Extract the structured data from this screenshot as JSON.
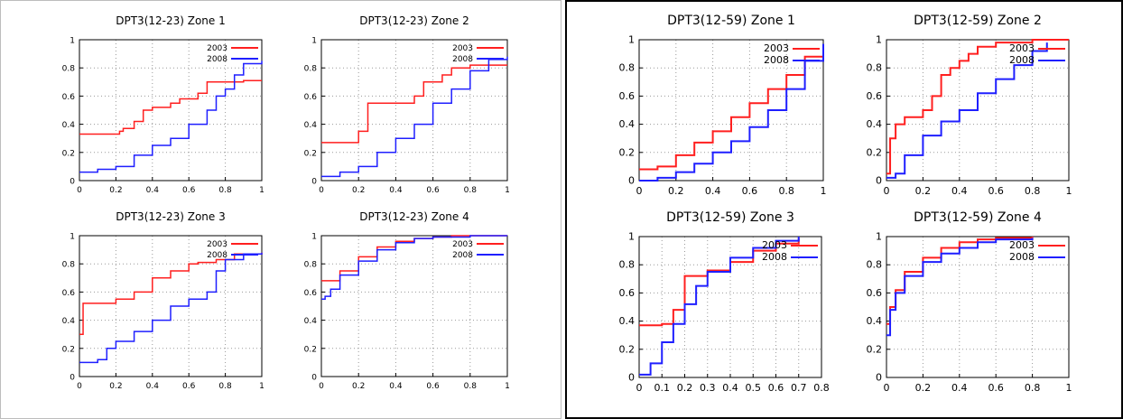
{
  "colors": {
    "s2003": "#ff1f1f",
    "s2008": "#1f1fff",
    "grid": "#9a9a9a"
  },
  "chart_data": [
    {
      "type": "line",
      "title": "DPT3(12-23) Zone 1",
      "xlim": [
        0,
        1
      ],
      "ylim": [
        0,
        1
      ],
      "xticks": [
        "0",
        "0.2",
        "0.4",
        "0.6",
        "0.8",
        "1"
      ],
      "yticks": [
        "0",
        "0.2",
        "0.4",
        "0.6",
        "0.8",
        "1"
      ],
      "legend": "top-right",
      "series": [
        {
          "name": "2003",
          "x": [
            0,
            0.22,
            0.24,
            0.3,
            0.35,
            0.4,
            0.5,
            0.55,
            0.65,
            0.7,
            0.9,
            1
          ],
          "y": [
            0.33,
            0.35,
            0.37,
            0.42,
            0.5,
            0.52,
            0.55,
            0.58,
            0.62,
            0.7,
            0.71,
            0.71
          ]
        },
        {
          "name": "2008",
          "x": [
            0,
            0.1,
            0.2,
            0.3,
            0.4,
            0.5,
            0.6,
            0.7,
            0.75,
            0.8,
            0.85,
            0.9,
            1
          ],
          "y": [
            0.06,
            0.08,
            0.1,
            0.18,
            0.25,
            0.3,
            0.4,
            0.5,
            0.6,
            0.65,
            0.75,
            0.83,
            0.85
          ]
        }
      ]
    },
    {
      "type": "line",
      "title": "DPT3(12-23) Zone 2",
      "xlim": [
        0,
        1
      ],
      "ylim": [
        0,
        1
      ],
      "xticks": [
        "0",
        "0.2",
        "0.4",
        "0.6",
        "0.8",
        "1"
      ],
      "yticks": [
        "0",
        "0.2",
        "0.4",
        "0.6",
        "0.8",
        "1"
      ],
      "legend": "top-right",
      "series": [
        {
          "name": "2003",
          "x": [
            0,
            0.2,
            0.25,
            0.5,
            0.55,
            0.65,
            0.7,
            0.8,
            0.9,
            1
          ],
          "y": [
            0.27,
            0.35,
            0.55,
            0.6,
            0.7,
            0.75,
            0.8,
            0.82,
            0.82,
            0.82
          ]
        },
        {
          "name": "2008",
          "x": [
            0,
            0.1,
            0.2,
            0.3,
            0.4,
            0.5,
            0.6,
            0.7,
            0.8,
            0.9,
            1
          ],
          "y": [
            0.03,
            0.06,
            0.1,
            0.2,
            0.3,
            0.4,
            0.55,
            0.65,
            0.78,
            0.86,
            0.88
          ]
        }
      ]
    },
    {
      "type": "line",
      "title": "DPT3(12-23) Zone 3",
      "xlim": [
        0,
        1
      ],
      "ylim": [
        0,
        1
      ],
      "xticks": [
        "0",
        "0.2",
        "0.4",
        "0.6",
        "0.8",
        "1"
      ],
      "yticks": [
        "0",
        "0.2",
        "0.4",
        "0.6",
        "0.8",
        "1"
      ],
      "legend": "top-right",
      "series": [
        {
          "name": "2003",
          "x": [
            0,
            0.02,
            0.2,
            0.3,
            0.4,
            0.5,
            0.6,
            0.65,
            0.75,
            0.85,
            1
          ],
          "y": [
            0.3,
            0.52,
            0.55,
            0.6,
            0.7,
            0.75,
            0.8,
            0.81,
            0.83,
            0.87,
            0.88
          ]
        },
        {
          "name": "2008",
          "x": [
            0,
            0.1,
            0.15,
            0.2,
            0.3,
            0.4,
            0.5,
            0.6,
            0.7,
            0.75,
            0.8,
            0.9,
            1
          ],
          "y": [
            0.1,
            0.12,
            0.2,
            0.25,
            0.32,
            0.4,
            0.5,
            0.55,
            0.6,
            0.75,
            0.83,
            0.87,
            0.88
          ]
        }
      ]
    },
    {
      "type": "line",
      "title": "DPT3(12-23) Zone 4",
      "xlim": [
        0,
        1
      ],
      "ylim": [
        0,
        1
      ],
      "xticks": [
        "0",
        "0.2",
        "0.4",
        "0.6",
        "0.8",
        "1"
      ],
      "yticks": [
        "0",
        "0.2",
        "0.4",
        "0.6",
        "0.8",
        "1"
      ],
      "legend": "top-right",
      "series": [
        {
          "name": "2003",
          "x": [
            0,
            0.1,
            0.2,
            0.3,
            0.4,
            0.5,
            0.6,
            0.7,
            0.8,
            1
          ],
          "y": [
            0.68,
            0.75,
            0.85,
            0.92,
            0.96,
            0.98,
            0.99,
            1,
            1,
            1
          ]
        },
        {
          "name": "2008",
          "x": [
            0,
            0.02,
            0.05,
            0.1,
            0.2,
            0.3,
            0.4,
            0.5,
            0.6,
            0.8,
            1
          ],
          "y": [
            0.55,
            0.57,
            0.62,
            0.72,
            0.82,
            0.9,
            0.95,
            0.98,
            0.99,
            1,
            1
          ]
        }
      ]
    },
    {
      "type": "line",
      "title": "DPT3(12-59) Zone 1",
      "xlim": [
        0,
        1
      ],
      "ylim": [
        0,
        1
      ],
      "xticks": [
        "0",
        "0.2",
        "0.4",
        "0.6",
        "0.8",
        "1"
      ],
      "yticks": [
        "0",
        "0.2",
        "0.4",
        "0.6",
        "0.8",
        "1"
      ],
      "legend": "top-right",
      "series": [
        {
          "name": "2003",
          "x": [
            0,
            0.1,
            0.2,
            0.3,
            0.4,
            0.5,
            0.6,
            0.7,
            0.8,
            0.9,
            1
          ],
          "y": [
            0.08,
            0.1,
            0.18,
            0.27,
            0.35,
            0.45,
            0.55,
            0.65,
            0.75,
            0.88,
            0.92
          ]
        },
        {
          "name": "2008",
          "x": [
            0,
            0.1,
            0.2,
            0.3,
            0.4,
            0.5,
            0.6,
            0.7,
            0.8,
            0.9,
            1
          ],
          "y": [
            0,
            0.02,
            0.06,
            0.12,
            0.2,
            0.28,
            0.38,
            0.5,
            0.65,
            0.85,
            0.97
          ]
        }
      ]
    },
    {
      "type": "line",
      "title": "DPT3(12-59) Zone 2",
      "xlim": [
        0,
        1
      ],
      "ylim": [
        0,
        1
      ],
      "xticks": [
        "0",
        "0.2",
        "0.4",
        "0.6",
        "0.8",
        "1"
      ],
      "yticks": [
        "0",
        "0.2",
        "0.4",
        "0.6",
        "0.8",
        "1"
      ],
      "legend": "top-right",
      "series": [
        {
          "name": "2003",
          "x": [
            0,
            0.02,
            0.05,
            0.1,
            0.2,
            0.25,
            0.3,
            0.35,
            0.4,
            0.45,
            0.5,
            0.6,
            0.8,
            1
          ],
          "y": [
            0.05,
            0.3,
            0.4,
            0.45,
            0.5,
            0.6,
            0.75,
            0.8,
            0.85,
            0.9,
            0.95,
            0.98,
            1,
            1
          ]
        },
        {
          "name": "2008",
          "x": [
            0,
            0.05,
            0.1,
            0.2,
            0.3,
            0.4,
            0.5,
            0.6,
            0.7,
            0.8,
            0.88
          ],
          "y": [
            0.02,
            0.05,
            0.18,
            0.32,
            0.42,
            0.5,
            0.62,
            0.72,
            0.82,
            0.92,
            0.98
          ]
        }
      ]
    },
    {
      "type": "line",
      "title": "DPT3(12-59) Zone 3",
      "xlim": [
        0,
        0.8
      ],
      "ylim": [
        0,
        1
      ],
      "xticks": [
        "0",
        "0.1",
        "0.2",
        "0.3",
        "0.4",
        "0.5",
        "0.6",
        "0.7",
        "0.8"
      ],
      "yticks": [
        "0",
        "0.2",
        "0.4",
        "0.6",
        "0.8",
        "1"
      ],
      "legend": "top-right",
      "series": [
        {
          "name": "2003",
          "x": [
            0,
            0.1,
            0.15,
            0.2,
            0.3,
            0.4,
            0.5,
            0.6,
            0.7
          ],
          "y": [
            0.37,
            0.38,
            0.48,
            0.72,
            0.76,
            0.82,
            0.9,
            0.95,
            0.99
          ]
        },
        {
          "name": "2008",
          "x": [
            0,
            0.05,
            0.1,
            0.15,
            0.2,
            0.25,
            0.3,
            0.4,
            0.5,
            0.6,
            0.7
          ],
          "y": [
            0.02,
            0.1,
            0.25,
            0.38,
            0.52,
            0.65,
            0.75,
            0.85,
            0.92,
            0.97,
            1
          ]
        }
      ]
    },
    {
      "type": "line",
      "title": "DPT3(12-59) Zone 4",
      "xlim": [
        0,
        1
      ],
      "ylim": [
        0,
        1
      ],
      "xticks": [
        "0",
        "0.2",
        "0.4",
        "0.6",
        "0.8",
        "1"
      ],
      "yticks": [
        "0",
        "0.2",
        "0.4",
        "0.6",
        "0.8",
        "1"
      ],
      "legend": "top-right",
      "series": [
        {
          "name": "2003",
          "x": [
            0,
            0.02,
            0.05,
            0.1,
            0.2,
            0.3,
            0.4,
            0.5,
            0.6,
            0.8
          ],
          "y": [
            0.38,
            0.5,
            0.62,
            0.75,
            0.85,
            0.92,
            0.96,
            0.98,
            0.99,
            1
          ]
        },
        {
          "name": "2008",
          "x": [
            0,
            0.02,
            0.05,
            0.1,
            0.2,
            0.3,
            0.4,
            0.5,
            0.6,
            0.8
          ],
          "y": [
            0.3,
            0.48,
            0.6,
            0.72,
            0.82,
            0.88,
            0.92,
            0.96,
            0.98,
            0.99
          ]
        }
      ]
    }
  ]
}
